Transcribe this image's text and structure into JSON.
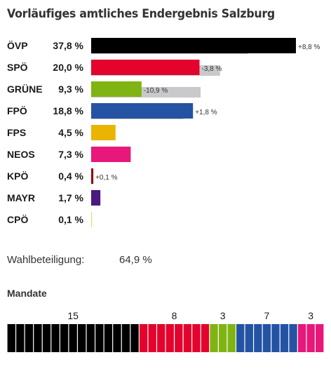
{
  "title": "Vorläufiges amtliches Endergebnis Salzburg",
  "colors": {
    "prev_bar": "#c9c9cc",
    "text": "#1a1a1a"
  },
  "chart_data": {
    "type": "bar",
    "orientation": "horizontal",
    "title": "Vorläufiges amtliches Endergebnis Salzburg",
    "categories": [
      "ÖVP",
      "SPÖ",
      "GRÜNE",
      "FPÖ",
      "FPS",
      "NEOS",
      "KPÖ",
      "MAYR",
      "CPÖ"
    ],
    "series": [
      {
        "values": [
          37.8,
          20.0,
          9.3,
          18.8,
          4.5,
          7.3,
          0.4,
          1.7,
          0.1
        ],
        "value_labels": [
          "37,8 %",
          "20,0 %",
          "9,3 %",
          "18,8 %",
          "4,5 %",
          "7,3 %",
          "0,4 %",
          "1,7 %",
          "0,1 %"
        ],
        "colors": [
          "#000000",
          "#e3032d",
          "#80b412",
          "#2553a3",
          "#e9b402",
          "#e8177a",
          "#8d0a0f",
          "#4a1a7e",
          "#f0d66a"
        ]
      },
      {
        "values": [
          29.0,
          23.8,
          20.2,
          17.0,
          null,
          null,
          0.3,
          null,
          null
        ]
      }
    ],
    "changes": [
      "+8,8 %",
      "-3,8 %",
      "-10,9 %",
      "+1,8 %",
      "",
      "",
      "+0,1 %",
      "",
      ""
    ],
    "xlim": [
      0,
      40
    ]
  },
  "turnout": {
    "label": "Wahlbeteiligung:",
    "value": "64,9 %"
  },
  "mandates": {
    "title": "Mandate",
    "parties": [
      {
        "count": 15,
        "color": "#000000",
        "label": "15"
      },
      {
        "count": 8,
        "color": "#e3032d",
        "label": "8"
      },
      {
        "count": 3,
        "color": "#80b412",
        "label": "3"
      },
      {
        "count": 7,
        "color": "#2553a3",
        "label": "7"
      },
      {
        "count": 3,
        "color": "#e8177a",
        "label": "3"
      }
    ]
  }
}
